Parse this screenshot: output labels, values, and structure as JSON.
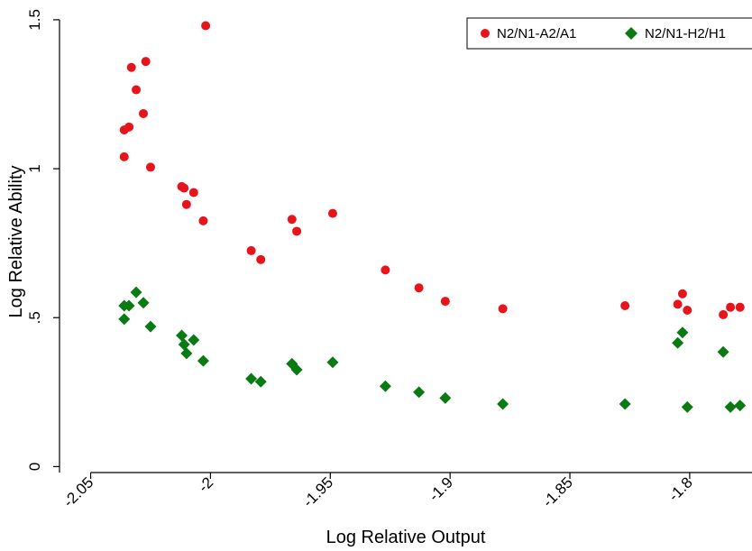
{
  "chart_data": {
    "type": "scatter",
    "xlabel": "Log Relative Output",
    "ylabel": "Log Relative Ability",
    "xlim": [
      -2.063,
      -1.774
    ],
    "ylim": [
      -0.02,
      1.53
    ],
    "xticks": [
      -2.05,
      -2.0,
      -1.95,
      -1.9,
      -1.85,
      -1.8
    ],
    "xtick_labels": [
      "-2.05",
      "-2",
      "-1.95",
      "-1.9",
      "-1.85",
      "-1.8"
    ],
    "yticks": [
      0,
      0.5,
      1,
      1.5
    ],
    "ytick_labels": [
      "0",
      ".5",
      "1",
      "1.5"
    ],
    "grid": false,
    "legend_position": "top-right",
    "series": [
      {
        "name": "N2/N1-A2/A1",
        "color": "#e8141c",
        "marker": "circle",
        "points": [
          [
            -2.036,
            1.13
          ],
          [
            -2.036,
            1.04
          ],
          [
            -2.034,
            1.14
          ],
          [
            -2.033,
            1.34
          ],
          [
            -2.031,
            1.265
          ],
          [
            -2.028,
            1.185
          ],
          [
            -2.027,
            1.36
          ],
          [
            -2.025,
            1.005
          ],
          [
            -2.012,
            0.94
          ],
          [
            -2.011,
            0.935
          ],
          [
            -2.01,
            0.88
          ],
          [
            -2.007,
            0.92
          ],
          [
            -2.003,
            0.825
          ],
          [
            -2.002,
            1.48
          ],
          [
            -1.983,
            0.725
          ],
          [
            -1.979,
            0.695
          ],
          [
            -1.966,
            0.83
          ],
          [
            -1.964,
            0.79
          ],
          [
            -1.949,
            0.85
          ],
          [
            -1.927,
            0.66
          ],
          [
            -1.913,
            0.6
          ],
          [
            -1.902,
            0.555
          ],
          [
            -1.878,
            0.53
          ],
          [
            -1.827,
            0.54
          ],
          [
            -1.805,
            0.545
          ],
          [
            -1.803,
            0.58
          ],
          [
            -1.801,
            0.525
          ],
          [
            -1.786,
            0.51
          ],
          [
            -1.783,
            0.535
          ],
          [
            -1.779,
            0.535
          ]
        ]
      },
      {
        "name": "N2/N1-H2/H1",
        "color": "#0a7a12",
        "marker": "diamond",
        "points": [
          [
            -2.036,
            0.54
          ],
          [
            -2.036,
            0.495
          ],
          [
            -2.034,
            0.54
          ],
          [
            -2.031,
            0.585
          ],
          [
            -2.028,
            0.55
          ],
          [
            -2.025,
            0.47
          ],
          [
            -2.012,
            0.44
          ],
          [
            -2.011,
            0.41
          ],
          [
            -2.01,
            0.38
          ],
          [
            -2.007,
            0.425
          ],
          [
            -2.003,
            0.355
          ],
          [
            -1.983,
            0.295
          ],
          [
            -1.979,
            0.285
          ],
          [
            -1.966,
            0.345
          ],
          [
            -1.964,
            0.325
          ],
          [
            -1.949,
            0.35
          ],
          [
            -1.927,
            0.27
          ],
          [
            -1.913,
            0.25
          ],
          [
            -1.902,
            0.23
          ],
          [
            -1.878,
            0.21
          ],
          [
            -1.827,
            0.21
          ],
          [
            -1.805,
            0.415
          ],
          [
            -1.803,
            0.45
          ],
          [
            -1.801,
            0.2
          ],
          [
            -1.786,
            0.385
          ],
          [
            -1.783,
            0.2
          ],
          [
            -1.779,
            0.205
          ]
        ]
      }
    ]
  }
}
